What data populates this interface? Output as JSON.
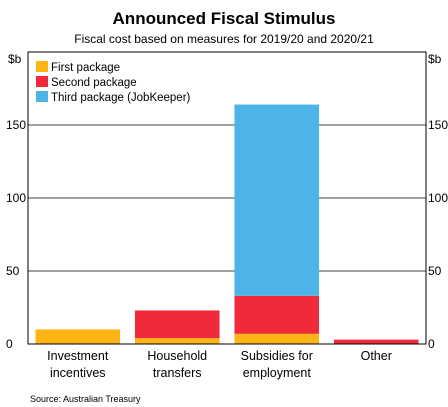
{
  "chart_data": {
    "type": "bar",
    "stacked": true,
    "title": "Announced Fiscal Stimulus",
    "subtitle": "Fiscal cost based on measures for 2019/20 and 2020/21",
    "ylabel_left": "$b",
    "ylabel_right": "$b",
    "ylim": [
      0,
      200
    ],
    "yticks": [
      0,
      50,
      100,
      150
    ],
    "grid": true,
    "legend_position": "top-left",
    "categories": [
      [
        "Investment",
        "incentives"
      ],
      [
        "Household",
        "transfers"
      ],
      [
        "Subsidies for",
        "employment"
      ],
      [
        "Other"
      ]
    ],
    "series": [
      {
        "name": "First package",
        "color": "#FDB515",
        "values": [
          10,
          4,
          7,
          0
        ]
      },
      {
        "name": "Second package",
        "color": "#EE2A3B",
        "values": [
          0,
          19,
          26,
          3
        ]
      },
      {
        "name": "Third package (JobKeeper)",
        "color": "#4CB4E7",
        "values": [
          0,
          0,
          131,
          0
        ]
      }
    ],
    "source": "Source:   Australian Treasury"
  }
}
